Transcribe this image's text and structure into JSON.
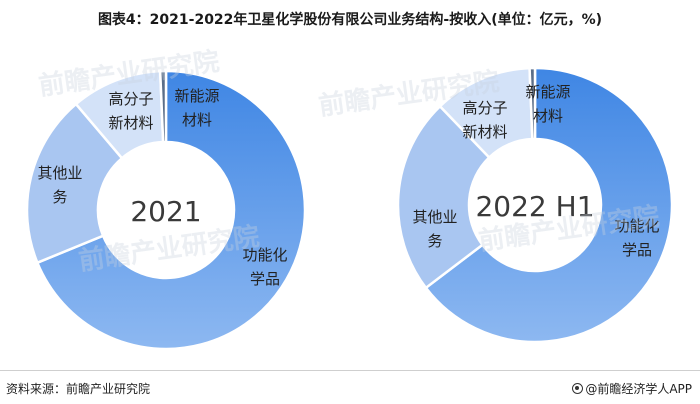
{
  "title": "图表4：2021-2022年卫星化学股份有限公司业务结构-按收入(单位：亿元，%)",
  "source": "资料来源：前瞻产业研究院",
  "brand": "@前瞻经济学人APP",
  "watermark": "前瞻产业研究院",
  "chart_data": [
    {
      "type": "pie",
      "center_label": "2021",
      "segments": [
        {
          "label": "功能化学品",
          "value": 62.0,
          "color": "#6aa1ec"
        },
        {
          "label": "其他业务",
          "value": 18.0,
          "color": "#a9c6f1"
        },
        {
          "label": "高分子新材料",
          "value": 9.5,
          "color": "#d3e2f8"
        },
        {
          "label": "新能源材料",
          "value": 0.6,
          "color": "#5b6e88"
        }
      ]
    },
    {
      "type": "pie",
      "center_label": "2022 H1",
      "segments": [
        {
          "label": "功能化学品",
          "value": 61.5,
          "color": "#6aa1ec"
        },
        {
          "label": "其他业务",
          "value": 22.0,
          "color": "#a9c6f1"
        },
        {
          "label": "高分子新材料",
          "value": 11.0,
          "color": "#d3e2f8"
        },
        {
          "label": "新能源材料",
          "value": 0.6,
          "color": "#5b6e88"
        }
      ]
    }
  ]
}
